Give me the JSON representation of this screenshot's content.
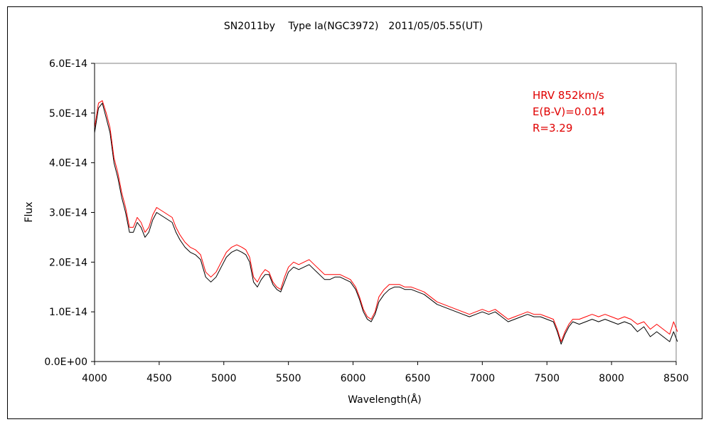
{
  "chart_data": {
    "type": "line",
    "title": "SN2011by　 Type Ia(NGC3972)　2011/05/05.55(UT)",
    "xlabel": "Wavelength(Å)",
    "ylabel": "Flux",
    "xlim": [
      4000,
      8500
    ],
    "ylim": [
      0,
      6e-14
    ],
    "x_ticks": [
      4000,
      4500,
      5000,
      5500,
      6000,
      6500,
      7000,
      7500,
      8000,
      8500
    ],
    "x_tick_labels": [
      "4000",
      "4500",
      "5000",
      "5500",
      "6000",
      "6500",
      "7000",
      "7500",
      "8000",
      "8500"
    ],
    "y_ticks": [
      0,
      1e-14,
      2e-14,
      3e-14,
      4e-14,
      5e-14,
      6e-14
    ],
    "y_tick_labels": [
      "0.0E+00",
      "1.0E-14",
      "2.0E-14",
      "3.0E-14",
      "4.0E-14",
      "5.0E-14",
      "6.0E-14"
    ],
    "grid": false,
    "annotations": [
      "HRV 852km/s",
      "E(B-V)=0.014",
      "R=3.29"
    ],
    "annotation_color": "#e00000",
    "series_colors": [
      "#000000",
      "#ff0000"
    ],
    "series": [
      {
        "x": [
          4000,
          4030,
          4060,
          4090,
          4120,
          4150,
          4180,
          4210,
          4240,
          4270,
          4300,
          4330,
          4360,
          4390,
          4420,
          4450,
          4480,
          4510,
          4540,
          4570,
          4600,
          4630,
          4660,
          4700,
          4740,
          4780,
          4820,
          4860,
          4900,
          4940,
          4980,
          5020,
          5060,
          5100,
          5140,
          5170,
          5200,
          5230,
          5260,
          5290,
          5320,
          5350,
          5380,
          5410,
          5440,
          5470,
          5500,
          5540,
          5580,
          5620,
          5660,
          5700,
          5740,
          5780,
          5820,
          5860,
          5900,
          5940,
          5980,
          6020,
          6050,
          6080,
          6110,
          6140,
          6170,
          6200,
          6240,
          6280,
          6320,
          6360,
          6400,
          6450,
          6500,
          6550,
          6600,
          6650,
          6700,
          6750,
          6800,
          6850,
          6900,
          6950,
          7000,
          7050,
          7100,
          7150,
          7200,
          7250,
          7300,
          7350,
          7400,
          7450,
          7500,
          7550,
          7580,
          7610,
          7640,
          7670,
          7700,
          7750,
          7800,
          7850,
          7900,
          7950,
          8000,
          8050,
          8100,
          8150,
          8200,
          8250,
          8300,
          8350,
          8400,
          8450,
          8480,
          8510
        ],
        "y": [
          4.6e-14,
          5.1e-14,
          5.2e-14,
          4.9e-14,
          4.6e-14,
          4e-14,
          3.7e-14,
          3.3e-14,
          3e-14,
          2.6e-14,
          2.6e-14,
          2.8e-14,
          2.7e-14,
          2.5e-14,
          2.6e-14,
          2.85e-14,
          3e-14,
          2.95e-14,
          2.9e-14,
          2.85e-14,
          2.8e-14,
          2.6e-14,
          2.45e-14,
          2.3e-14,
          2.2e-14,
          2.15e-14,
          2.05e-14,
          1.7e-14,
          1.6e-14,
          1.7e-14,
          1.9e-14,
          2.1e-14,
          2.2e-14,
          2.25e-14,
          2.2e-14,
          2.15e-14,
          2e-14,
          1.6e-14,
          1.5e-14,
          1.65e-14,
          1.75e-14,
          1.75e-14,
          1.55e-14,
          1.45e-14,
          1.4e-14,
          1.6e-14,
          1.8e-14,
          1.9e-14,
          1.85e-14,
          1.9e-14,
          1.95e-14,
          1.85e-14,
          1.75e-14,
          1.65e-14,
          1.65e-14,
          1.7e-14,
          1.7e-14,
          1.65e-14,
          1.6e-14,
          1.45e-14,
          1.25e-14,
          1e-14,
          8.5e-15,
          8e-15,
          9.5e-15,
          1.2e-14,
          1.35e-14,
          1.45e-14,
          1.5e-14,
          1.5e-14,
          1.45e-14,
          1.45e-14,
          1.4e-14,
          1.35e-14,
          1.25e-14,
          1.15e-14,
          1.1e-14,
          1.05e-14,
          1e-14,
          9.5e-15,
          9e-15,
          9.5e-15,
          1e-14,
          9.5e-15,
          1e-14,
          9e-15,
          8e-15,
          8.5e-15,
          9e-15,
          9.5e-15,
          9e-15,
          9e-15,
          8.5e-15,
          8e-15,
          6e-15,
          3.5e-15,
          5.5e-15,
          7e-15,
          8e-15,
          7.5e-15,
          8e-15,
          8.5e-15,
          8e-15,
          8.5e-15,
          8e-15,
          7.5e-15,
          8e-15,
          7.5e-15,
          6e-15,
          7e-15,
          5e-15,
          6e-15,
          5e-15,
          4e-15,
          6e-15,
          4e-15
        ]
      },
      {
        "x": [
          4000,
          4030,
          4060,
          4090,
          4120,
          4150,
          4180,
          4210,
          4240,
          4270,
          4300,
          4330,
          4360,
          4390,
          4420,
          4450,
          4480,
          4510,
          4540,
          4570,
          4600,
          4630,
          4660,
          4700,
          4740,
          4780,
          4820,
          4860,
          4900,
          4940,
          4980,
          5020,
          5060,
          5100,
          5140,
          5170,
          5200,
          5230,
          5260,
          5290,
          5320,
          5350,
          5380,
          5410,
          5440,
          5470,
          5500,
          5540,
          5580,
          5620,
          5660,
          5700,
          5740,
          5780,
          5820,
          5860,
          5900,
          5940,
          5980,
          6020,
          6050,
          6080,
          6110,
          6140,
          6170,
          6200,
          6240,
          6280,
          6320,
          6360,
          6400,
          6450,
          6500,
          6550,
          6600,
          6650,
          6700,
          6750,
          6800,
          6850,
          6900,
          6950,
          7000,
          7050,
          7100,
          7150,
          7200,
          7250,
          7300,
          7350,
          7400,
          7450,
          7500,
          7550,
          7580,
          7610,
          7640,
          7670,
          7700,
          7750,
          7800,
          7850,
          7900,
          7950,
          8000,
          8050,
          8100,
          8150,
          8200,
          8250,
          8300,
          8350,
          8400,
          8450,
          8480,
          8510
        ],
        "y": [
          4.7e-14,
          5.2e-14,
          5.25e-14,
          5e-14,
          4.7e-14,
          4.1e-14,
          3.8e-14,
          3.4e-14,
          3.1e-14,
          2.7e-14,
          2.7e-14,
          2.9e-14,
          2.8e-14,
          2.6e-14,
          2.7e-14,
          2.95e-14,
          3.1e-14,
          3.05e-14,
          3e-14,
          2.95e-14,
          2.9e-14,
          2.7e-14,
          2.55e-14,
          2.4e-14,
          2.3e-14,
          2.25e-14,
          2.15e-14,
          1.8e-14,
          1.7e-14,
          1.8e-14,
          2e-14,
          2.2e-14,
          2.3e-14,
          2.35e-14,
          2.3e-14,
          2.25e-14,
          2.1e-14,
          1.7e-14,
          1.6e-14,
          1.75e-14,
          1.85e-14,
          1.8e-14,
          1.6e-14,
          1.5e-14,
          1.45e-14,
          1.7e-14,
          1.9e-14,
          2e-14,
          1.95e-14,
          2e-14,
          2.05e-14,
          1.95e-14,
          1.85e-14,
          1.75e-14,
          1.75e-14,
          1.75e-14,
          1.75e-14,
          1.7e-14,
          1.65e-14,
          1.5e-14,
          1.3e-14,
          1.05e-14,
          9e-15,
          8.5e-15,
          1e-14,
          1.3e-14,
          1.45e-14,
          1.55e-14,
          1.55e-14,
          1.55e-14,
          1.5e-14,
          1.5e-14,
          1.45e-14,
          1.4e-14,
          1.3e-14,
          1.2e-14,
          1.15e-14,
          1.1e-14,
          1.05e-14,
          1e-14,
          9.5e-15,
          1e-14,
          1.05e-14,
          1e-14,
          1.05e-14,
          9.5e-15,
          8.5e-15,
          9e-15,
          9.5e-15,
          1e-14,
          9.5e-15,
          9.5e-15,
          9e-15,
          8.5e-15,
          6.5e-15,
          4e-15,
          6e-15,
          7.5e-15,
          8.5e-15,
          8.5e-15,
          9e-15,
          9.5e-15,
          9e-15,
          9.5e-15,
          9e-15,
          8.5e-15,
          9e-15,
          8.5e-15,
          7.5e-15,
          8e-15,
          6.5e-15,
          7.5e-15,
          6.5e-15,
          5.5e-15,
          8e-15,
          6e-15
        ]
      }
    ]
  }
}
